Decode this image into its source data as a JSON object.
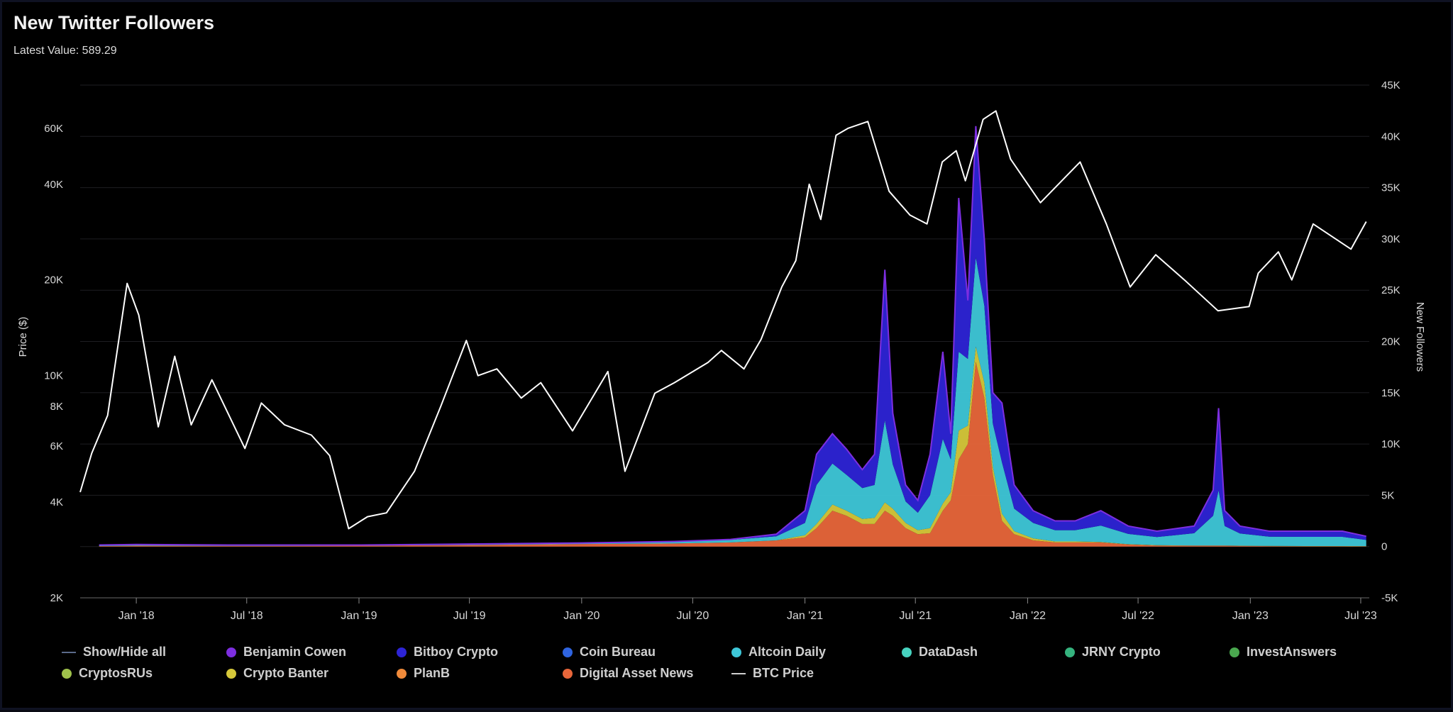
{
  "header": {
    "title": "New Twitter Followers",
    "latest_label": "Latest Value:",
    "latest_value": "589.29"
  },
  "chart_data": {
    "type": "area",
    "title": "New Twitter Followers",
    "ylabel_left": "Price ($)",
    "ylabel_right": "New Followers",
    "x_ticks": [
      "Jan '18",
      "Jul '18",
      "Jan '19",
      "Jul '19",
      "Jan '20",
      "Jul '20",
      "Jan '21",
      "Jul '21",
      "Jan '22",
      "Jul '22",
      "Jan '23",
      "Jul '23"
    ],
    "x_range": [
      "2017-10-01",
      "2023-07-15"
    ],
    "left_axis": {
      "scale": "log",
      "ticks": [
        "2K",
        "4K",
        "6K",
        "8K",
        "10K",
        "20K",
        "40K",
        "60K"
      ],
      "tick_values": [
        2000,
        4000,
        6000,
        8000,
        10000,
        20000,
        40000,
        60000
      ]
    },
    "right_axis": {
      "ticks": [
        "-5K",
        "0",
        "5K",
        "10K",
        "15K",
        "20K",
        "25K",
        "30K",
        "35K",
        "40K",
        "45K"
      ],
      "range": [
        -5000,
        45000
      ]
    },
    "btc_price": {
      "name": "BTC Price",
      "color": "#ffffff",
      "dates": [
        "2017-10-01",
        "2017-10-20",
        "2017-11-15",
        "2017-12-17",
        "2018-01-05",
        "2018-02-06",
        "2018-03-05",
        "2018-04-01",
        "2018-05-05",
        "2018-06-28",
        "2018-07-25",
        "2018-09-01",
        "2018-10-15",
        "2018-11-14",
        "2018-12-15",
        "2019-01-15",
        "2019-02-15",
        "2019-04-02",
        "2019-05-15",
        "2019-06-26",
        "2019-07-15",
        "2019-08-15",
        "2019-09-24",
        "2019-10-26",
        "2019-12-17",
        "2020-02-13",
        "2020-03-12",
        "2020-04-30",
        "2020-06-01",
        "2020-07-26",
        "2020-08-17",
        "2020-09-23",
        "2020-10-21",
        "2020-11-24",
        "2020-12-17",
        "2021-01-08",
        "2021-01-27",
        "2021-02-21",
        "2021-03-13",
        "2021-04-14",
        "2021-05-19",
        "2021-06-22",
        "2021-07-20",
        "2021-08-14",
        "2021-09-06",
        "2021-09-21",
        "2021-10-20",
        "2021-11-10",
        "2021-12-04",
        "2022-01-22",
        "2022-03-28",
        "2022-05-10",
        "2022-06-18",
        "2022-07-30",
        "2022-09-15",
        "2022-11-09",
        "2022-12-30",
        "2023-01-14",
        "2023-02-16",
        "2023-03-10",
        "2023-04-14",
        "2023-06-15",
        "2023-07-10"
      ],
      "values": [
        4300,
        5700,
        7500,
        19500,
        15500,
        6900,
        11500,
        7000,
        9700,
        5900,
        8200,
        7000,
        6500,
        5600,
        3300,
        3600,
        3700,
        5000,
        8000,
        12900,
        10000,
        10500,
        8500,
        9500,
        6700,
        10300,
        5000,
        8800,
        9500,
        11000,
        12000,
        10500,
        13000,
        19000,
        23000,
        40000,
        31000,
        57000,
        60000,
        63000,
        38000,
        32000,
        30000,
        47000,
        51000,
        41000,
        64000,
        68000,
        48000,
        35000,
        47000,
        30000,
        19000,
        24000,
        20000,
        16000,
        16500,
        21000,
        24500,
        20000,
        30000,
        25000,
        30500
      ]
    },
    "series_order": [
      "Digital Asset News",
      "PlanB",
      "Crypto Banter",
      "CryptosRUs",
      "InvestAnswers",
      "JRNY Crypto",
      "DataDash",
      "Altcoin Daily",
      "Coin Bureau",
      "Bitboy Crypto",
      "Benjamin Cowen"
    ],
    "series": [
      {
        "name": "Benjamin Cowen",
        "color": "#7d2ee0"
      },
      {
        "name": "Bitboy Crypto",
        "color": "#2d24d6"
      },
      {
        "name": "Coin Bureau",
        "color": "#2f64e0"
      },
      {
        "name": "Altcoin Daily",
        "color": "#3ec7d8"
      },
      {
        "name": "DataDash",
        "color": "#47d3c0"
      },
      {
        "name": "JRNY Crypto",
        "color": "#35b37e"
      },
      {
        "name": "InvestAnswers",
        "color": "#4aa84f"
      },
      {
        "name": "CryptosRUs",
        "color": "#9fc24b"
      },
      {
        "name": "Crypto Banter",
        "color": "#d6c83a"
      },
      {
        "name": "PlanB",
        "color": "#f08a3a"
      },
      {
        "name": "Digital Asset News",
        "color": "#e8663a"
      }
    ],
    "followers_dates": [
      "2017-11-01",
      "2018-01-01",
      "2018-06-01",
      "2019-01-01",
      "2019-07-01",
      "2020-01-01",
      "2020-06-01",
      "2020-09-01",
      "2020-11-15",
      "2021-01-01",
      "2021-01-20",
      "2021-02-15",
      "2021-03-10",
      "2021-04-05",
      "2021-04-25",
      "2021-05-12",
      "2021-05-25",
      "2021-06-15",
      "2021-07-05",
      "2021-07-25",
      "2021-08-15",
      "2021-08-28",
      "2021-09-10",
      "2021-09-25",
      "2021-10-08",
      "2021-10-22",
      "2021-11-05",
      "2021-11-20",
      "2021-12-10",
      "2022-01-10",
      "2022-02-15",
      "2022-03-20",
      "2022-05-01",
      "2022-06-15",
      "2022-08-01",
      "2022-10-01",
      "2022-11-01",
      "2022-11-10",
      "2022-11-20",
      "2022-12-15",
      "2023-02-01",
      "2023-04-01",
      "2023-06-01",
      "2023-07-10"
    ],
    "followers_total": [
      150,
      200,
      150,
      150,
      250,
      350,
      500,
      700,
      1200,
      3500,
      9000,
      11000,
      9500,
      7500,
      9000,
      27000,
      13000,
      6000,
      4500,
      9000,
      19000,
      11000,
      34000,
      24000,
      41000,
      30000,
      15000,
      14000,
      6000,
      3500,
      2500,
      2500,
      3500,
      2000,
      1500,
      2000,
      5500,
      13500,
      3500,
      2000,
      1500,
      1500,
      1500,
      1000
    ],
    "followers_orange": [
      50,
      80,
      60,
      80,
      150,
      250,
      300,
      400,
      600,
      900,
      1800,
      3500,
      3000,
      2200,
      2200,
      3500,
      3000,
      1800,
      1200,
      1300,
      3500,
      4500,
      8500,
      10000,
      18000,
      14500,
      7000,
      2500,
      1200,
      600,
      400,
      400,
      400,
      200,
      100,
      80,
      80,
      80,
      80,
      60,
      40,
      30,
      30,
      20
    ],
    "followers_yellow": [
      0,
      0,
      0,
      0,
      0,
      0,
      0,
      0,
      0,
      200,
      400,
      600,
      500,
      500,
      600,
      800,
      700,
      500,
      400,
      500,
      700,
      800,
      2800,
      1800,
      1500,
      1500,
      800,
      700,
      300,
      200,
      100,
      100,
      50,
      30,
      30,
      20,
      20,
      20,
      20,
      20,
      20,
      20,
      20,
      20
    ],
    "followers_teal": [
      100,
      120,
      90,
      70,
      100,
      100,
      200,
      250,
      400,
      1200,
      3800,
      4000,
      3500,
      3000,
      3200,
      8000,
      4300,
      2100,
      1700,
      3200,
      6300,
      3200,
      7700,
      6500,
      8700,
      7500,
      4200,
      5000,
      2200,
      1500,
      1100,
      1100,
      1600,
      1000,
      800,
      1200,
      2900,
      5400,
      1900,
      1200,
      900,
      900,
      900,
      600
    ],
    "followers_blue": [
      0,
      0,
      0,
      0,
      0,
      0,
      0,
      50,
      200,
      1200,
      3000,
      2900,
      2500,
      1800,
      3000,
      14700,
      5000,
      1600,
      1200,
      4000,
      8500,
      2500,
      15000,
      5700,
      12800,
      6500,
      3000,
      5800,
      2300,
      1200,
      900,
      900,
      1450,
      770,
      570,
      700,
      2500,
      7900,
      1500,
      700,
      540,
      550,
      550,
      360
    ]
  },
  "legend": [
    {
      "label": "Show/Hide all",
      "kind": "line",
      "color": "#5a6a8a"
    },
    {
      "label": "Benjamin Cowen",
      "kind": "dot",
      "color": "#7d2ee0"
    },
    {
      "label": "Bitboy Crypto",
      "kind": "dot",
      "color": "#2d24d6"
    },
    {
      "label": "Coin Bureau",
      "kind": "dot",
      "color": "#2f64e0"
    },
    {
      "label": "Altcoin Daily",
      "kind": "dot",
      "color": "#3ec7d8"
    },
    {
      "label": "DataDash",
      "kind": "dot",
      "color": "#47d3c0"
    },
    {
      "label": "JRNY Crypto",
      "kind": "dot",
      "color": "#35b37e"
    },
    {
      "label": "InvestAnswers",
      "kind": "dot",
      "color": "#4aa84f"
    },
    {
      "label": "CryptosRUs",
      "kind": "dot",
      "color": "#9fc24b"
    },
    {
      "label": "Crypto Banter",
      "kind": "dot",
      "color": "#d6c83a"
    },
    {
      "label": "PlanB",
      "kind": "dot",
      "color": "#f08a3a"
    },
    {
      "label": "Digital Asset News",
      "kind": "dot",
      "color": "#e8663a"
    },
    {
      "label": "BTC Price",
      "kind": "line",
      "color": "#cfcfcf"
    }
  ]
}
